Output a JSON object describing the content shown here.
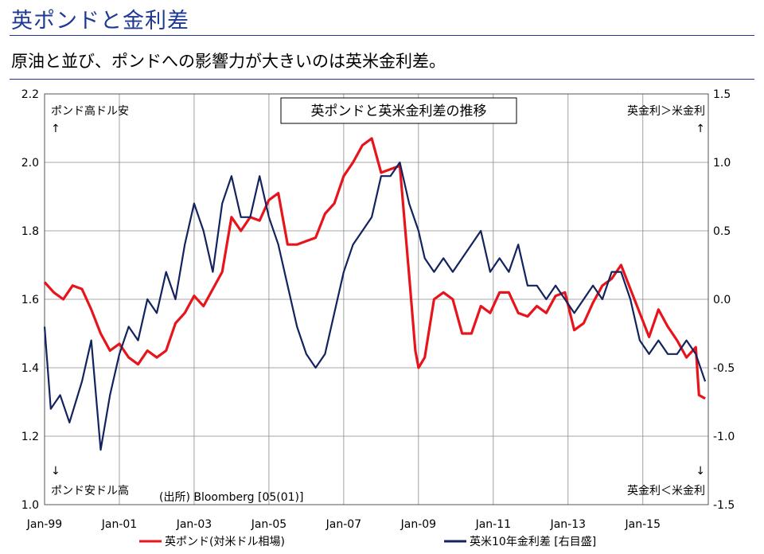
{
  "header": {
    "title": "英ポンドと金利差",
    "subtitle": "原油と並び、ポンドへの影響力が大きいのは英米金利差。"
  },
  "chart_data": {
    "type": "line",
    "title": "英ポンドと英米金利差の推移",
    "source": "(出所) Bloomberg   [05(01)]",
    "annotations": {
      "left_top": "ポンド高ドル安",
      "left_top_arrow": "↑",
      "left_bottom_arrow": "↓",
      "left_bottom": "ポンド安ドル高",
      "right_top": "英金利＞米金利",
      "right_top_arrow": "↑",
      "right_bottom_arrow": "↓",
      "right_bottom": "英金利＜米金利"
    },
    "x_ticks": [
      "Jan-99",
      "Jan-01",
      "Jan-03",
      "Jan-05",
      "Jan-07",
      "Jan-09",
      "Jan-11",
      "Jan-13",
      "Jan-15"
    ],
    "xlim": [
      "1999-01",
      "2016-10"
    ],
    "y_left": {
      "lim": [
        1.0,
        2.2
      ],
      "ticks": [
        "1.0",
        "1.2",
        "1.4",
        "1.6",
        "1.8",
        "2.0",
        "2.2"
      ]
    },
    "y_right": {
      "lim": [
        -1.5,
        1.5
      ],
      "ticks": [
        "-1.5",
        "-1.0",
        "-0.5",
        "0.0",
        "0.5",
        "1.0",
        "1.5"
      ]
    },
    "grid": true,
    "legend_position": "bottom",
    "series": [
      {
        "name": "英ポンド(対米ドル相場)",
        "axis": "left",
        "color": "#e8141c",
        "points": [
          [
            "1999-01",
            1.65
          ],
          [
            "1999-04",
            1.62
          ],
          [
            "1999-07",
            1.6
          ],
          [
            "1999-10",
            1.64
          ],
          [
            "2000-01",
            1.63
          ],
          [
            "2000-04",
            1.57
          ],
          [
            "2000-07",
            1.5
          ],
          [
            "2000-10",
            1.45
          ],
          [
            "2001-01",
            1.47
          ],
          [
            "2001-04",
            1.43
          ],
          [
            "2001-07",
            1.41
          ],
          [
            "2001-10",
            1.45
          ],
          [
            "2002-01",
            1.43
          ],
          [
            "2002-04",
            1.45
          ],
          [
            "2002-07",
            1.53
          ],
          [
            "2002-10",
            1.56
          ],
          [
            "2003-01",
            1.61
          ],
          [
            "2003-04",
            1.58
          ],
          [
            "2003-07",
            1.63
          ],
          [
            "2003-10",
            1.68
          ],
          [
            "2004-01",
            1.84
          ],
          [
            "2004-04",
            1.8
          ],
          [
            "2004-07",
            1.84
          ],
          [
            "2004-10",
            1.83
          ],
          [
            "2005-01",
            1.89
          ],
          [
            "2005-04",
            1.91
          ],
          [
            "2005-07",
            1.76
          ],
          [
            "2005-10",
            1.76
          ],
          [
            "2006-01",
            1.77
          ],
          [
            "2006-04",
            1.78
          ],
          [
            "2006-07",
            1.85
          ],
          [
            "2006-10",
            1.88
          ],
          [
            "2007-01",
            1.96
          ],
          [
            "2007-04",
            2.0
          ],
          [
            "2007-07",
            2.05
          ],
          [
            "2007-10",
            2.07
          ],
          [
            "2008-01",
            1.97
          ],
          [
            "2008-04",
            1.98
          ],
          [
            "2008-07",
            1.99
          ],
          [
            "2008-10",
            1.67
          ],
          [
            "2008-12",
            1.45
          ],
          [
            "2009-01",
            1.4
          ],
          [
            "2009-03",
            1.43
          ],
          [
            "2009-06",
            1.6
          ],
          [
            "2009-09",
            1.62
          ],
          [
            "2009-12",
            1.6
          ],
          [
            "2010-03",
            1.5
          ],
          [
            "2010-06",
            1.5
          ],
          [
            "2010-09",
            1.58
          ],
          [
            "2010-12",
            1.56
          ],
          [
            "2011-03",
            1.62
          ],
          [
            "2011-06",
            1.62
          ],
          [
            "2011-09",
            1.56
          ],
          [
            "2011-12",
            1.55
          ],
          [
            "2012-03",
            1.58
          ],
          [
            "2012-06",
            1.56
          ],
          [
            "2012-09",
            1.61
          ],
          [
            "2012-12",
            1.62
          ],
          [
            "2013-03",
            1.51
          ],
          [
            "2013-06",
            1.53
          ],
          [
            "2013-09",
            1.59
          ],
          [
            "2013-12",
            1.64
          ],
          [
            "2014-03",
            1.66
          ],
          [
            "2014-06",
            1.7
          ],
          [
            "2014-09",
            1.63
          ],
          [
            "2014-12",
            1.56
          ],
          [
            "2015-03",
            1.49
          ],
          [
            "2015-06",
            1.57
          ],
          [
            "2015-09",
            1.52
          ],
          [
            "2015-12",
            1.48
          ],
          [
            "2016-03",
            1.43
          ],
          [
            "2016-06",
            1.46
          ],
          [
            "2016-07",
            1.32
          ],
          [
            "2016-09",
            1.31
          ]
        ]
      },
      {
        "name": "英米10年金利差 [右目盛]",
        "axis": "right",
        "color": "#13235e",
        "points": [
          [
            "1999-01",
            -0.2
          ],
          [
            "1999-03",
            -0.8
          ],
          [
            "1999-06",
            -0.7
          ],
          [
            "1999-09",
            -0.9
          ],
          [
            "2000-01",
            -0.6
          ],
          [
            "2000-04",
            -0.3
          ],
          [
            "2000-07",
            -1.1
          ],
          [
            "2000-10",
            -0.7
          ],
          [
            "2001-01",
            -0.4
          ],
          [
            "2001-04",
            -0.2
          ],
          [
            "2001-07",
            -0.3
          ],
          [
            "2001-10",
            0.0
          ],
          [
            "2002-01",
            -0.1
          ],
          [
            "2002-04",
            0.2
          ],
          [
            "2002-07",
            0.0
          ],
          [
            "2002-10",
            0.4
          ],
          [
            "2003-01",
            0.7
          ],
          [
            "2003-04",
            0.5
          ],
          [
            "2003-07",
            0.2
          ],
          [
            "2003-10",
            0.7
          ],
          [
            "2004-01",
            0.9
          ],
          [
            "2004-04",
            0.6
          ],
          [
            "2004-07",
            0.6
          ],
          [
            "2004-10",
            0.9
          ],
          [
            "2005-01",
            0.6
          ],
          [
            "2005-04",
            0.4
          ],
          [
            "2005-07",
            0.1
          ],
          [
            "2005-10",
            -0.2
          ],
          [
            "2006-01",
            -0.4
          ],
          [
            "2006-04",
            -0.5
          ],
          [
            "2006-07",
            -0.4
          ],
          [
            "2006-10",
            -0.1
          ],
          [
            "2007-01",
            0.2
          ],
          [
            "2007-04",
            0.4
          ],
          [
            "2007-07",
            0.5
          ],
          [
            "2007-10",
            0.6
          ],
          [
            "2008-01",
            0.9
          ],
          [
            "2008-04",
            0.9
          ],
          [
            "2008-07",
            1.0
          ],
          [
            "2008-10",
            0.7
          ],
          [
            "2009-01",
            0.5
          ],
          [
            "2009-03",
            0.3
          ],
          [
            "2009-06",
            0.2
          ],
          [
            "2009-09",
            0.3
          ],
          [
            "2009-12",
            0.2
          ],
          [
            "2010-03",
            0.3
          ],
          [
            "2010-06",
            0.4
          ],
          [
            "2010-09",
            0.5
          ],
          [
            "2010-12",
            0.2
          ],
          [
            "2011-03",
            0.3
          ],
          [
            "2011-06",
            0.2
          ],
          [
            "2011-09",
            0.4
          ],
          [
            "2011-12",
            0.1
          ],
          [
            "2012-03",
            0.1
          ],
          [
            "2012-06",
            0.0
          ],
          [
            "2012-09",
            0.1
          ],
          [
            "2012-12",
            0.0
          ],
          [
            "2013-03",
            -0.1
          ],
          [
            "2013-06",
            0.0
          ],
          [
            "2013-09",
            0.1
          ],
          [
            "2013-12",
            0.0
          ],
          [
            "2014-03",
            0.2
          ],
          [
            "2014-06",
            0.2
          ],
          [
            "2014-09",
            0.0
          ],
          [
            "2014-12",
            -0.3
          ],
          [
            "2015-03",
            -0.4
          ],
          [
            "2015-06",
            -0.3
          ],
          [
            "2015-09",
            -0.4
          ],
          [
            "2015-12",
            -0.4
          ],
          [
            "2016-03",
            -0.3
          ],
          [
            "2016-06",
            -0.4
          ],
          [
            "2016-09",
            -0.6
          ]
        ]
      }
    ]
  }
}
